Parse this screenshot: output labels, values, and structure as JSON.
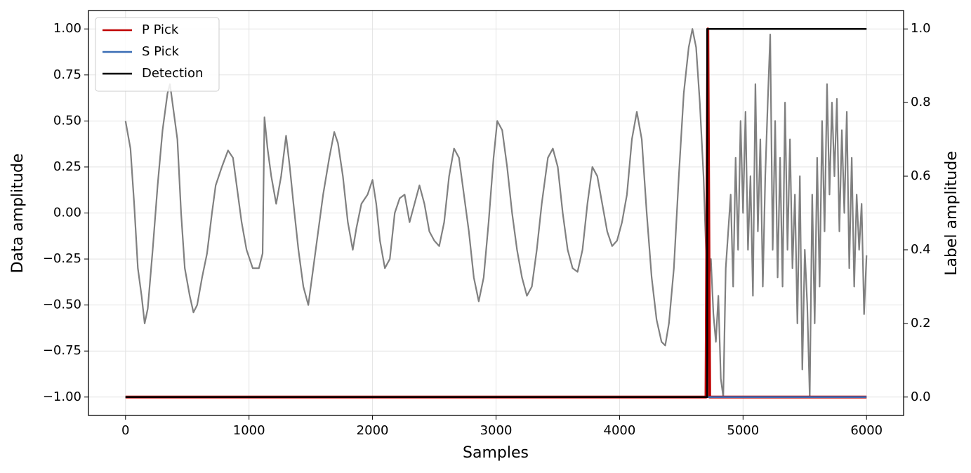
{
  "chart_data": {
    "type": "line",
    "xlabel": "Samples",
    "ylabel": "Data amplitude",
    "y2label": "Label amplitude",
    "xlim": [
      -300,
      6300
    ],
    "ylim": [
      -1.1,
      1.1
    ],
    "y2lim": [
      -0.05,
      1.05
    ],
    "xticks": [
      0,
      1000,
      2000,
      3000,
      4000,
      5000,
      6000
    ],
    "yticks": [
      {
        "value": -1,
        "label": "−1.00"
      },
      {
        "value": -0.75,
        "label": "−0.75"
      },
      {
        "value": -0.5,
        "label": "−0.50"
      },
      {
        "value": -0.25,
        "label": "−0.25"
      },
      {
        "value": 0,
        "label": "0.00"
      },
      {
        "value": 0.25,
        "label": "0.25"
      },
      {
        "value": 0.5,
        "label": "0.50"
      },
      {
        "value": 0.75,
        "label": "0.75"
      },
      {
        "value": 1,
        "label": "1.00"
      }
    ],
    "y2ticks": [
      {
        "value": 0,
        "label": "0.0"
      },
      {
        "value": 0.2,
        "label": "0.2"
      },
      {
        "value": 0.4,
        "label": "0.4"
      },
      {
        "value": 0.6,
        "label": "0.6"
      },
      {
        "value": 0.8,
        "label": "0.8"
      },
      {
        "value": 1,
        "label": "1.0"
      }
    ],
    "grid": true,
    "legend": "upper left",
    "series": [
      {
        "color": "#808080",
        "x": [
          0,
          40,
          70,
          100,
          130,
          155,
          180,
          220,
          260,
          300,
          340,
          360,
          390,
          420,
          450,
          480,
          520,
          550,
          580,
          620,
          660,
          700,
          730,
          780,
          830,
          870,
          900,
          940,
          980,
          1030,
          1080,
          1110,
          1125,
          1150,
          1180,
          1220,
          1260,
          1300,
          1330,
          1360,
          1400,
          1440,
          1480,
          1520,
          1560,
          1600,
          1650,
          1690,
          1720,
          1760,
          1800,
          1840,
          1870,
          1910,
          1960,
          2000,
          2030,
          2060,
          2100,
          2140,
          2180,
          2220,
          2260,
          2300,
          2340,
          2380,
          2420,
          2460,
          2500,
          2540,
          2580,
          2620,
          2660,
          2700,
          2740,
          2780,
          2820,
          2860,
          2900,
          2940,
          2980,
          3010,
          3050,
          3090,
          3130,
          3170,
          3210,
          3250,
          3290,
          3330,
          3370,
          3420,
          3460,
          3500,
          3540,
          3580,
          3620,
          3660,
          3700,
          3740,
          3780,
          3820,
          3860,
          3900,
          3940,
          3980,
          4020,
          4060,
          4100,
          4140,
          4180,
          4220,
          4260,
          4300,
          4340,
          4370,
          4400,
          4440,
          4480,
          4520,
          4560,
          4590,
          4620,
          4650,
          4680,
          4700,
          4720,
          4740,
          4760,
          4780,
          4800,
          4820,
          4840,
          4860,
          4880,
          4900,
          4920,
          4940,
          4960,
          4980,
          5000,
          5020,
          5040,
          5060,
          5080,
          5100,
          5120,
          5140,
          5160,
          5180,
          5200,
          5220,
          5240,
          5260,
          5280,
          5300,
          5320,
          5340,
          5360,
          5380,
          5400,
          5420,
          5440,
          5460,
          5480,
          5500,
          5520,
          5540,
          5560,
          5580,
          5600,
          5620,
          5640,
          5660,
          5680,
          5700,
          5720,
          5740,
          5760,
          5780,
          5800,
          5820,
          5840,
          5860,
          5880,
          5900,
          5920,
          5940,
          5960,
          5980,
          6000
        ],
        "values": [
          0.5,
          0.35,
          0.05,
          -0.3,
          -0.45,
          -0.6,
          -0.52,
          -0.2,
          0.15,
          0.45,
          0.65,
          0.7,
          0.55,
          0.4,
          0.0,
          -0.3,
          -0.45,
          -0.54,
          -0.5,
          -0.35,
          -0.22,
          0.0,
          0.15,
          0.25,
          0.34,
          0.3,
          0.15,
          -0.05,
          -0.2,
          -0.3,
          -0.3,
          -0.22,
          0.52,
          0.35,
          0.2,
          0.05,
          0.2,
          0.42,
          0.25,
          0.05,
          -0.2,
          -0.4,
          -0.5,
          -0.3,
          -0.1,
          0.1,
          0.3,
          0.44,
          0.38,
          0.2,
          -0.05,
          -0.2,
          -0.08,
          0.05,
          0.1,
          0.18,
          0.05,
          -0.15,
          -0.3,
          -0.25,
          0.0,
          0.08,
          0.1,
          -0.05,
          0.05,
          0.15,
          0.05,
          -0.1,
          -0.15,
          -0.18,
          -0.05,
          0.2,
          0.35,
          0.3,
          0.1,
          -0.1,
          -0.35,
          -0.48,
          -0.35,
          -0.05,
          0.3,
          0.5,
          0.45,
          0.25,
          0.0,
          -0.2,
          -0.35,
          -0.45,
          -0.4,
          -0.2,
          0.05,
          0.3,
          0.35,
          0.25,
          0.0,
          -0.2,
          -0.3,
          -0.32,
          -0.2,
          0.05,
          0.25,
          0.2,
          0.05,
          -0.1,
          -0.18,
          -0.15,
          -0.05,
          0.1,
          0.4,
          0.55,
          0.4,
          0.0,
          -0.35,
          -0.58,
          -0.7,
          -0.72,
          -0.6,
          -0.3,
          0.2,
          0.65,
          0.9,
          1.0,
          0.9,
          0.6,
          0.2,
          -0.2,
          -0.4,
          -0.25,
          -0.55,
          -0.7,
          -0.45,
          -0.9,
          -1.0,
          -0.3,
          -0.1,
          0.1,
          -0.4,
          0.3,
          -0.2,
          0.5,
          0.0,
          0.55,
          -0.2,
          0.2,
          -0.45,
          0.7,
          -0.1,
          0.4,
          -0.4,
          0.2,
          0.6,
          0.97,
          -0.2,
          0.5,
          -0.35,
          0.3,
          -0.4,
          0.6,
          -0.2,
          0.4,
          -0.3,
          0.1,
          -0.6,
          0.2,
          -0.85,
          -0.2,
          -0.5,
          -1.0,
          0.1,
          -0.6,
          0.3,
          -0.4,
          0.5,
          -0.1,
          0.7,
          0.1,
          0.6,
          0.2,
          0.62,
          -0.1,
          0.45,
          0.0,
          0.55,
          -0.3,
          0.3,
          -0.4,
          0.1,
          -0.2,
          0.05,
          -0.55,
          -0.23
        ]
      },
      {
        "name": "P Pick",
        "color": "#c00000",
        "axis": "y2",
        "x": [
          0,
          4700,
          4715,
          4730,
          6000
        ],
        "values": [
          0,
          0,
          1,
          0,
          0
        ]
      },
      {
        "name": "S Pick",
        "color": "#3a6db5",
        "axis": "y2",
        "x": [
          0,
          6000
        ],
        "values": [
          0,
          0
        ]
      },
      {
        "name": "Detection",
        "color": "#000000",
        "axis": "y2",
        "x": [
          0,
          4710,
          4710,
          6000
        ],
        "values": [
          0,
          0,
          1,
          1
        ]
      }
    ]
  }
}
